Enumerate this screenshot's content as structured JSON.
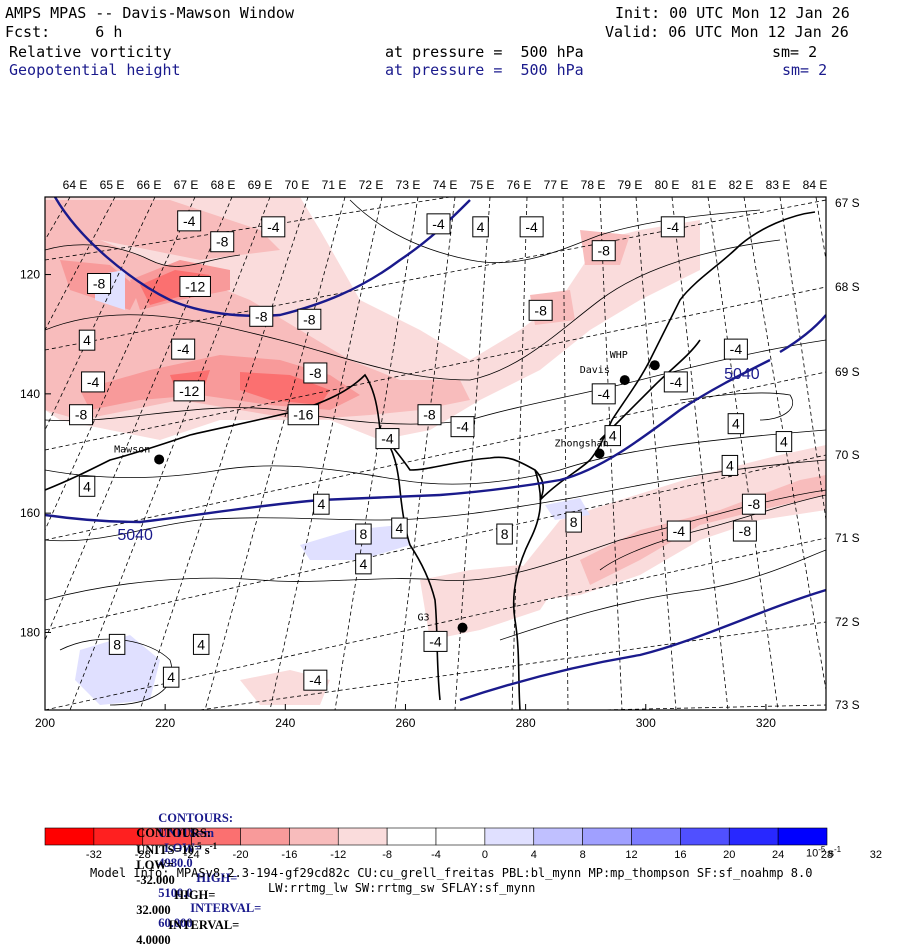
{
  "header": {
    "title": "AMPS MPAS -- Davis-Mawson Window",
    "init": "Init: 00 UTC Mon 12 Jan 26",
    "fcst": "Fcst:     6 h",
    "valid": "Valid: 06 UTC Mon 12 Jan 26",
    "field1": {
      "name": "Relative vorticity",
      "pressure": "at pressure =  500 hPa",
      "sm": "sm= 2"
    },
    "field2": {
      "name": "Geopotential height",
      "pressure": "at pressure =  500 hPa",
      "sm": "sm= 2"
    }
  },
  "colors": {
    "height_contour": "#1a1a8c",
    "red_scale": [
      "#ff0000",
      "#ff2020",
      "#ff4a4a",
      "#fb7070",
      "#f89a9a",
      "#f8bcbc",
      "#fadcdc"
    ],
    "blue_scale": [
      "#e0e0ff",
      "#c0c0ff",
      "#a0a0ff",
      "#7c7cff",
      "#5050ff",
      "#2828ff",
      "#0000ff"
    ]
  },
  "chart_data": {
    "type": "heatmap",
    "x_axis": {
      "ticks": [
        "200",
        "220",
        "240",
        "260",
        "280",
        "300",
        "320"
      ],
      "range": [
        200,
        330
      ]
    },
    "y_axis": {
      "ticks": [
        "120",
        "140",
        "160",
        "180"
      ],
      "range": [
        193,
        107
      ]
    },
    "lon_labels": [
      "64 E",
      "65 E",
      "66 E",
      "67 E",
      "68 E",
      "69 E",
      "70 E",
      "71 E",
      "72 E",
      "73 E",
      "74 E",
      "75 E",
      "76 E",
      "77 E",
      "78 E",
      "79 E",
      "80 E",
      "81 E",
      "82 E",
      "83 E",
      "84 E"
    ],
    "lat_labels": [
      "67 S",
      "68 S",
      "69 S",
      "70 S",
      "71 S",
      "72 S",
      "73 S"
    ],
    "stations": [
      {
        "name": "Davis",
        "x": 296.5,
        "y": 137.7
      },
      {
        "name": "WHP",
        "x": 301.5,
        "y": 135.2
      },
      {
        "name": "Zhongshan",
        "x": 292.3,
        "y": 150.0
      },
      {
        "name": "Mawson",
        "x": 219.0,
        "y": 151.0
      },
      {
        "name": "G3",
        "x": 269.5,
        "y": 179.2
      }
    ],
    "height_contour_labels": [
      {
        "text": "5040",
        "x": 215,
        "y": 163.5
      },
      {
        "text": "5040",
        "x": 316,
        "y": 136.5
      }
    ],
    "vorticity_labels": [
      {
        "text": "-4",
        "x": 224,
        "y": 111
      },
      {
        "text": "-8",
        "x": 229.5,
        "y": 114.5
      },
      {
        "text": "-4",
        "x": 238,
        "y": 112
      },
      {
        "text": "-8",
        "x": 209,
        "y": 121.5
      },
      {
        "text": "-12",
        "x": 225,
        "y": 122
      },
      {
        "text": "-8",
        "x": 236,
        "y": 127
      },
      {
        "text": "-8",
        "x": 244,
        "y": 127.5
      },
      {
        "text": "4",
        "x": 207,
        "y": 131
      },
      {
        "text": "-4",
        "x": 223,
        "y": 132.5
      },
      {
        "text": "-4",
        "x": 208,
        "y": 138
      },
      {
        "text": "-8",
        "x": 245,
        "y": 136.5
      },
      {
        "text": "-12",
        "x": 224,
        "y": 139.5
      },
      {
        "text": "-8",
        "x": 206,
        "y": 143.5
      },
      {
        "text": "-16",
        "x": 243,
        "y": 143.5
      },
      {
        "text": "-4",
        "x": 265.5,
        "y": 111.5
      },
      {
        "text": "4",
        "x": 272.5,
        "y": 112
      },
      {
        "text": "-4",
        "x": 281,
        "y": 112
      },
      {
        "text": "-8",
        "x": 293,
        "y": 116
      },
      {
        "text": "-4",
        "x": 304.5,
        "y": 112
      },
      {
        "text": "-8",
        "x": 282.5,
        "y": 126
      },
      {
        "text": "-8",
        "x": 264,
        "y": 143.5
      },
      {
        "text": "-4",
        "x": 269.5,
        "y": 145.5
      },
      {
        "text": "-4",
        "x": 257,
        "y": 147.5
      },
      {
        "text": "-4",
        "x": 293,
        "y": 140
      },
      {
        "text": "-4",
        "x": 305,
        "y": 138
      },
      {
        "text": "-4",
        "x": 315,
        "y": 132.5
      },
      {
        "text": "4",
        "x": 315,
        "y": 145
      },
      {
        "text": "4",
        "x": 323,
        "y": 148
      },
      {
        "text": "4",
        "x": 314,
        "y": 152
      },
      {
        "text": "4",
        "x": 294.5,
        "y": 147
      },
      {
        "text": "4",
        "x": 207,
        "y": 155.5
      },
      {
        "text": "4",
        "x": 246,
        "y": 158.5
      },
      {
        "text": "8",
        "x": 253,
        "y": 163.5
      },
      {
        "text": "4",
        "x": 259,
        "y": 162.5
      },
      {
        "text": "8",
        "x": 276.5,
        "y": 163.5
      },
      {
        "text": "8",
        "x": 288,
        "y": 161.5
      },
      {
        "text": "-4",
        "x": 305.5,
        "y": 163
      },
      {
        "text": "-8",
        "x": 318,
        "y": 158.5
      },
      {
        "text": "-8",
        "x": 316.5,
        "y": 163
      },
      {
        "text": "4",
        "x": 253,
        "y": 168.5
      },
      {
        "text": "8",
        "x": 212,
        "y": 182
      },
      {
        "text": "4",
        "x": 226,
        "y": 182
      },
      {
        "text": "-4",
        "x": 265,
        "y": 181.5
      },
      {
        "text": "4",
        "x": 221,
        "y": 187.5
      },
      {
        "text": "-4",
        "x": 245,
        "y": 188
      }
    ]
  },
  "legend": {
    "line1": {
      "label": "CONTOURS:",
      "units": "UNITS=m",
      "low": "LOW=",
      "low_value": "4980.0",
      "high": "HIGH=",
      "high_value": "5100.0",
      "interval": "INTERVAL=",
      "interval_value": "60.000"
    },
    "line2": {
      "label": "CONTOURS:",
      "units": "UNITS=10",
      "units_exp": "-5",
      "units_tail": "s",
      "units_tail_exp": "-1",
      "low": "LOW=",
      "low_value": "-32.000",
      "high": "HIGH=",
      "high_value": "32.000",
      "interval": "INTERVAL=",
      "interval_value": "4.0000"
    }
  },
  "colorbar": {
    "labels": [
      "-32",
      "-28",
      "-24",
      "-20",
      "-16",
      "-12",
      "-8",
      "-4",
      "0",
      "4",
      "8",
      "12",
      "16",
      "20",
      "24",
      "28",
      "32"
    ],
    "unit_text": "10",
    "unit_exp1": "-5",
    "unit_s": "s",
    "unit_exp2": "-1"
  },
  "footer": {
    "line1": "Model Info: MPASv8.2.3-194-gf29cd82c CU:cu_grell_freitas PBL:bl_mynn MP:mp_thompson SF:sf_noahmp 8.0",
    "line2": "LW:rrtmg_lw SW:rrtmg_sw SFLAY:sf_mynn"
  }
}
